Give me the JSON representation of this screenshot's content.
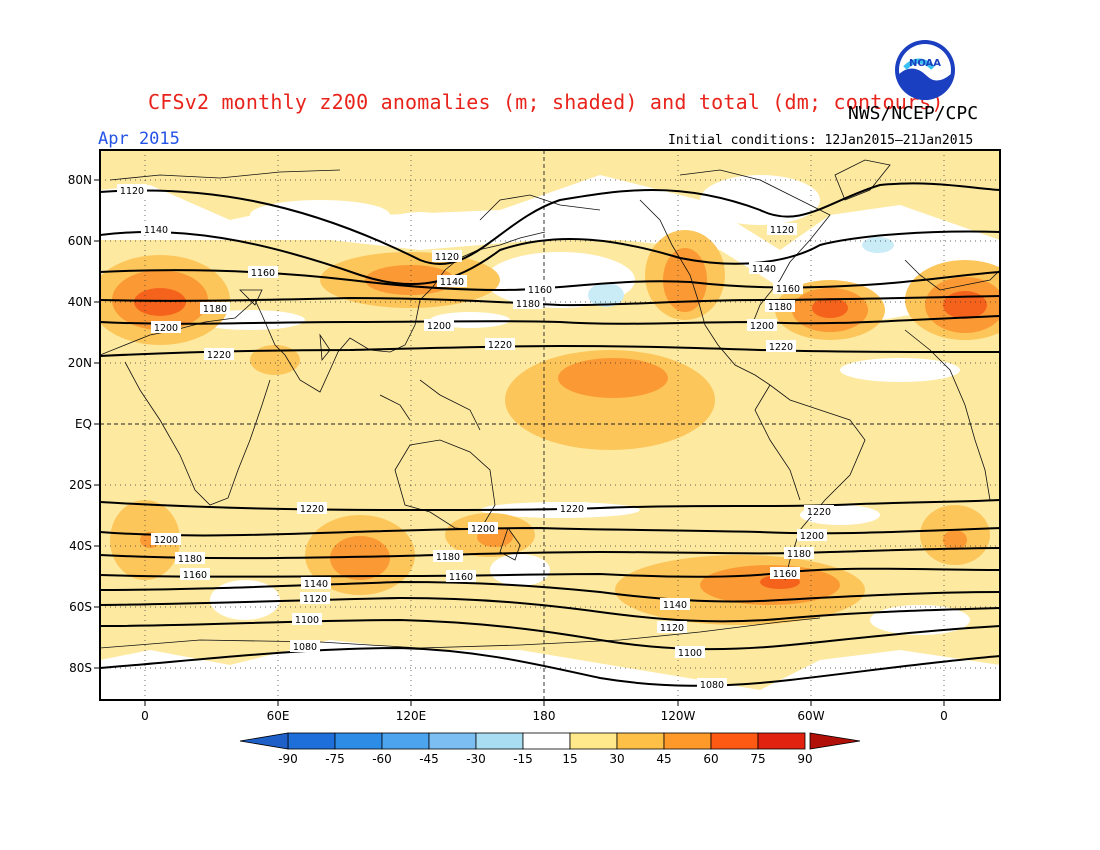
{
  "title": "CFSv2 monthly z200 anomalies (m; shaded) and total (dm; contours)",
  "organization": "NWS/NCEP/CPC",
  "logo_text": "NOAA",
  "month": "Apr 2015",
  "initial_conditions": "Initial conditions: 12Jan2015–21Jan2015",
  "lat_labels": [
    "80N",
    "60N",
    "40N",
    "20N",
    "EQ",
    "20S",
    "40S",
    "60S",
    "80S"
  ],
  "lon_labels": [
    "0",
    "60E",
    "120E",
    "180",
    "120W",
    "60W",
    "0"
  ],
  "contour_levels": [
    "1080",
    "1100",
    "1120",
    "1140",
    "1160",
    "1180",
    "1200",
    "1220"
  ],
  "colorbar": {
    "ticks": [
      "-90",
      "-75",
      "-60",
      "-45",
      "-30",
      "-15",
      "15",
      "30",
      "45",
      "60",
      "75",
      "90"
    ],
    "colors": [
      "#1e6fd9",
      "#2d8ce6",
      "#4ca3ee",
      "#7cbdf2",
      "#a9def2",
      "#ffffff",
      "#ffe98a",
      "#ffc048",
      "#ff9a2a",
      "#ff5a14",
      "#e0220e"
    ],
    "low_color": "#1e5fc8",
    "high_color": "#b01008"
  },
  "anomaly_colors": {
    "pos15": "#fde9a0",
    "pos30": "#fdc65a",
    "pos45": "#fb9a34",
    "pos60": "#f5621c",
    "neg15": "#c9ecf7"
  }
}
